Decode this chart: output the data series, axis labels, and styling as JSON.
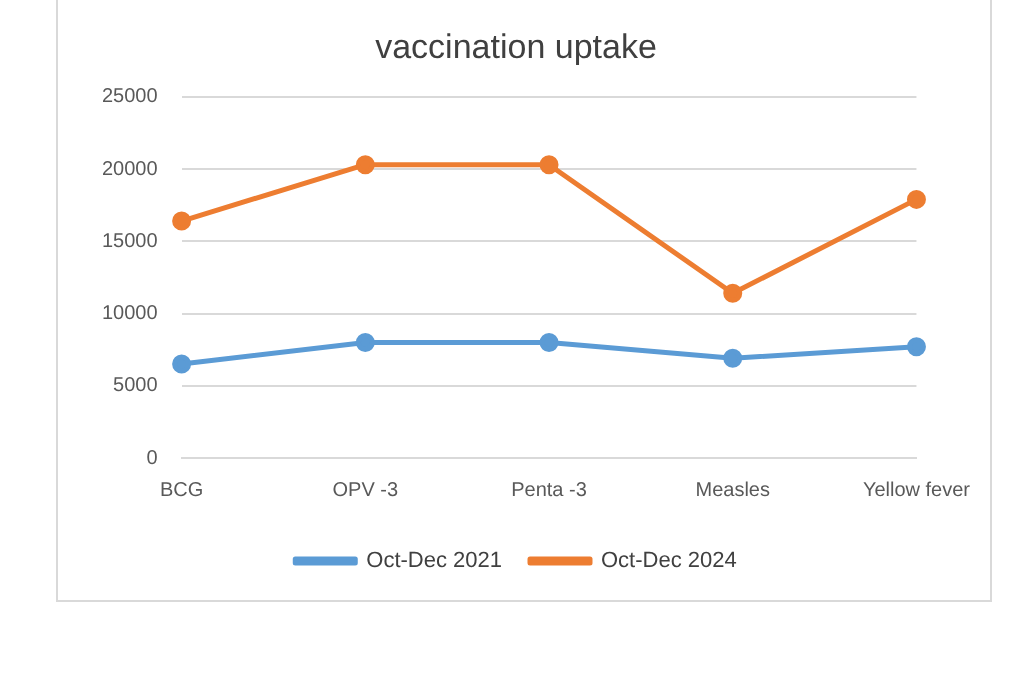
{
  "chart_data": {
    "type": "line",
    "title": "vaccination uptake",
    "categories": [
      "BCG",
      "OPV -3",
      "Penta -3",
      "Measles",
      "Yellow fever"
    ],
    "series": [
      {
        "name": "Oct-Dec 2021",
        "color": "#5b9bd5",
        "values": [
          6500,
          8000,
          8000,
          6900,
          7700
        ]
      },
      {
        "name": "Oct-Dec 2024",
        "color": "#ed7d31",
        "values": [
          16400,
          20300,
          20300,
          11400,
          17900
        ]
      }
    ],
    "ylim": [
      0,
      25000
    ],
    "yticks": [
      0,
      5000,
      10000,
      15000,
      20000,
      25000
    ],
    "grid": "y",
    "legend": "bottom",
    "marker": "circle",
    "line_style": "solid"
  }
}
